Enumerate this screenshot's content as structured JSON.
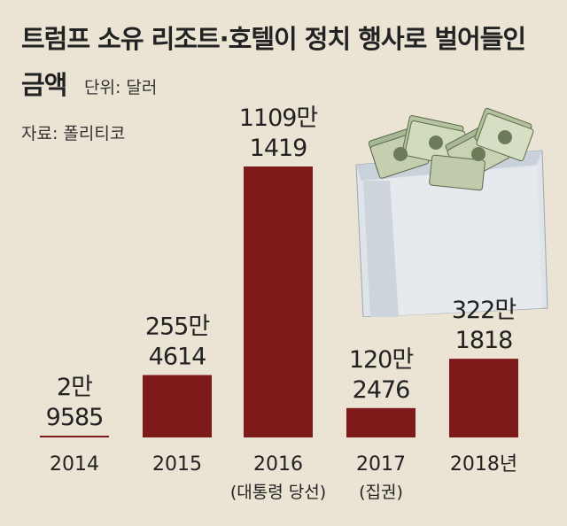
{
  "title_line1": "트럼프 소유 리조트·호텔이 정치 행사로 벌어들인",
  "title_line2": "금액",
  "unit": "단위: 달러",
  "source": "자료: 폴리티코",
  "colors": {
    "bar": "#7f1a1a",
    "background": "#ebe4d4",
    "text": "#222222"
  },
  "illustration": "money-box-illustration",
  "chart_data": {
    "type": "bar",
    "title": "트럼프 소유 리조트·호텔이 정치 행사로 벌어들인 금액",
    "unit": "달러",
    "categories": [
      "2014",
      "2015",
      "2016",
      "2017",
      "2018"
    ],
    "category_labels": [
      "2014",
      "2015",
      "2016",
      "2017",
      "2018년"
    ],
    "category_notes": [
      "",
      "",
      "(대통령 당선)",
      "(집권)",
      ""
    ],
    "values": [
      29585,
      2554614,
      11091419,
      1202476,
      3221818
    ],
    "value_labels": [
      [
        "2만",
        "9585"
      ],
      [
        "255만",
        "4614"
      ],
      [
        "1109만",
        "1419"
      ],
      [
        "120만",
        "2476"
      ],
      [
        "322만",
        "1818"
      ]
    ],
    "ylim": [
      0,
      11091419
    ],
    "grid": false,
    "legend": "none"
  }
}
